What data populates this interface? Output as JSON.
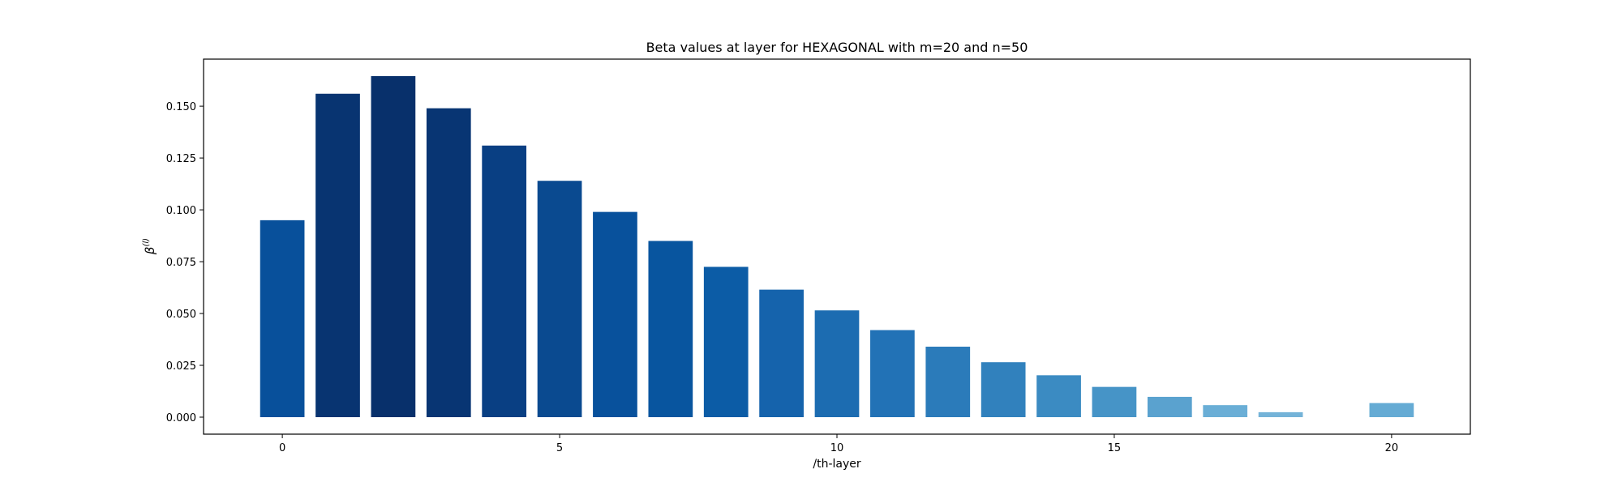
{
  "chart_data": {
    "type": "bar",
    "title": "Beta values at layer for HEXAGONAL with m=20 and n=50",
    "xlabel": "/th-layer",
    "ylabel": "β(l)",
    "ylabel_base": "β",
    "ylabel_sup": "(l)",
    "x": [
      0,
      1,
      2,
      3,
      4,
      5,
      6,
      7,
      8,
      9,
      10,
      11,
      12,
      13,
      14,
      15,
      16,
      17,
      18,
      19,
      20
    ],
    "values": [
      0.095,
      0.156,
      0.1645,
      0.149,
      0.131,
      0.114,
      0.099,
      0.085,
      0.0725,
      0.0615,
      0.0515,
      0.042,
      0.034,
      0.0265,
      0.0202,
      0.0146,
      0.0098,
      0.0058,
      0.0024,
      0.0,
      0.0068
    ],
    "colors": [
      "#08509b",
      "#083471",
      "#08306b",
      "#083573",
      "#093f83",
      "#0a4a90",
      "#08519c",
      "#08559f",
      "#0c5ca6",
      "#1563ac",
      "#1c6cb1",
      "#2272b6",
      "#2b7bba",
      "#3181bd",
      "#3b8bc2",
      "#4694c7",
      "#5aa2cf",
      "#6aaed6",
      "#74b3d8",
      "#c6dbef",
      "#65abd4"
    ],
    "xlim": [
      -1.42,
      21.42
    ],
    "ylim": [
      -0.0082,
      0.1727
    ],
    "xticks": [
      0,
      5,
      10,
      15,
      20
    ],
    "xtick_labels": [
      "0",
      "5",
      "10",
      "15",
      "20"
    ],
    "yticks": [
      0.0,
      0.025,
      0.05,
      0.075,
      0.1,
      0.125,
      0.15
    ],
    "ytick_labels": [
      "0.000",
      "0.025",
      "0.050",
      "0.075",
      "0.100",
      "0.125",
      "0.150"
    ],
    "grid": false,
    "legend": false
  }
}
